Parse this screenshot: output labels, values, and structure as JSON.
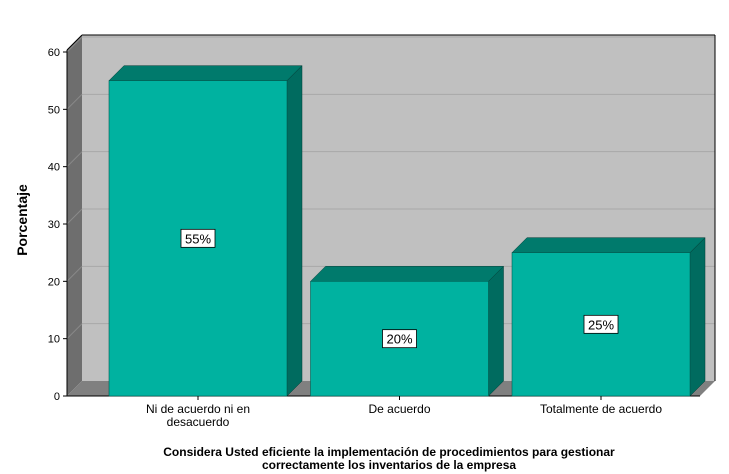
{
  "chart_data": {
    "type": "bar",
    "categories": [
      "Ni de acuerdo ni en desacuerdo",
      "De acuerdo",
      "Totalmente de acuerdo"
    ],
    "category_label_lines": [
      [
        "Ni de acuerdo ni en",
        "desacuerdo"
      ],
      [
        "De acuerdo"
      ],
      [
        "Totalmente de acuerdo"
      ]
    ],
    "values": [
      55,
      20,
      25
    ],
    "data_labels": [
      "55%",
      "20%",
      "25%"
    ],
    "ylabel": "Porcentaje",
    "xlabel_lines": [
      "Considera Usted eficiente la implementación de procedimientos para gestionar",
      "correctamente los inventarios de la empresa"
    ],
    "ylim": [
      0,
      60
    ],
    "yticks": [
      "0",
      "10",
      "20",
      "30",
      "40",
      "50",
      "60"
    ],
    "grid": true,
    "style": "3d"
  },
  "colors": {
    "bar_front": "#00b2a0",
    "bar_top": "#007a6c",
    "bar_side": "#006b5f",
    "wall": "#c0c0c0",
    "floor": "#808080",
    "left_wall": "#6e6e6e"
  }
}
